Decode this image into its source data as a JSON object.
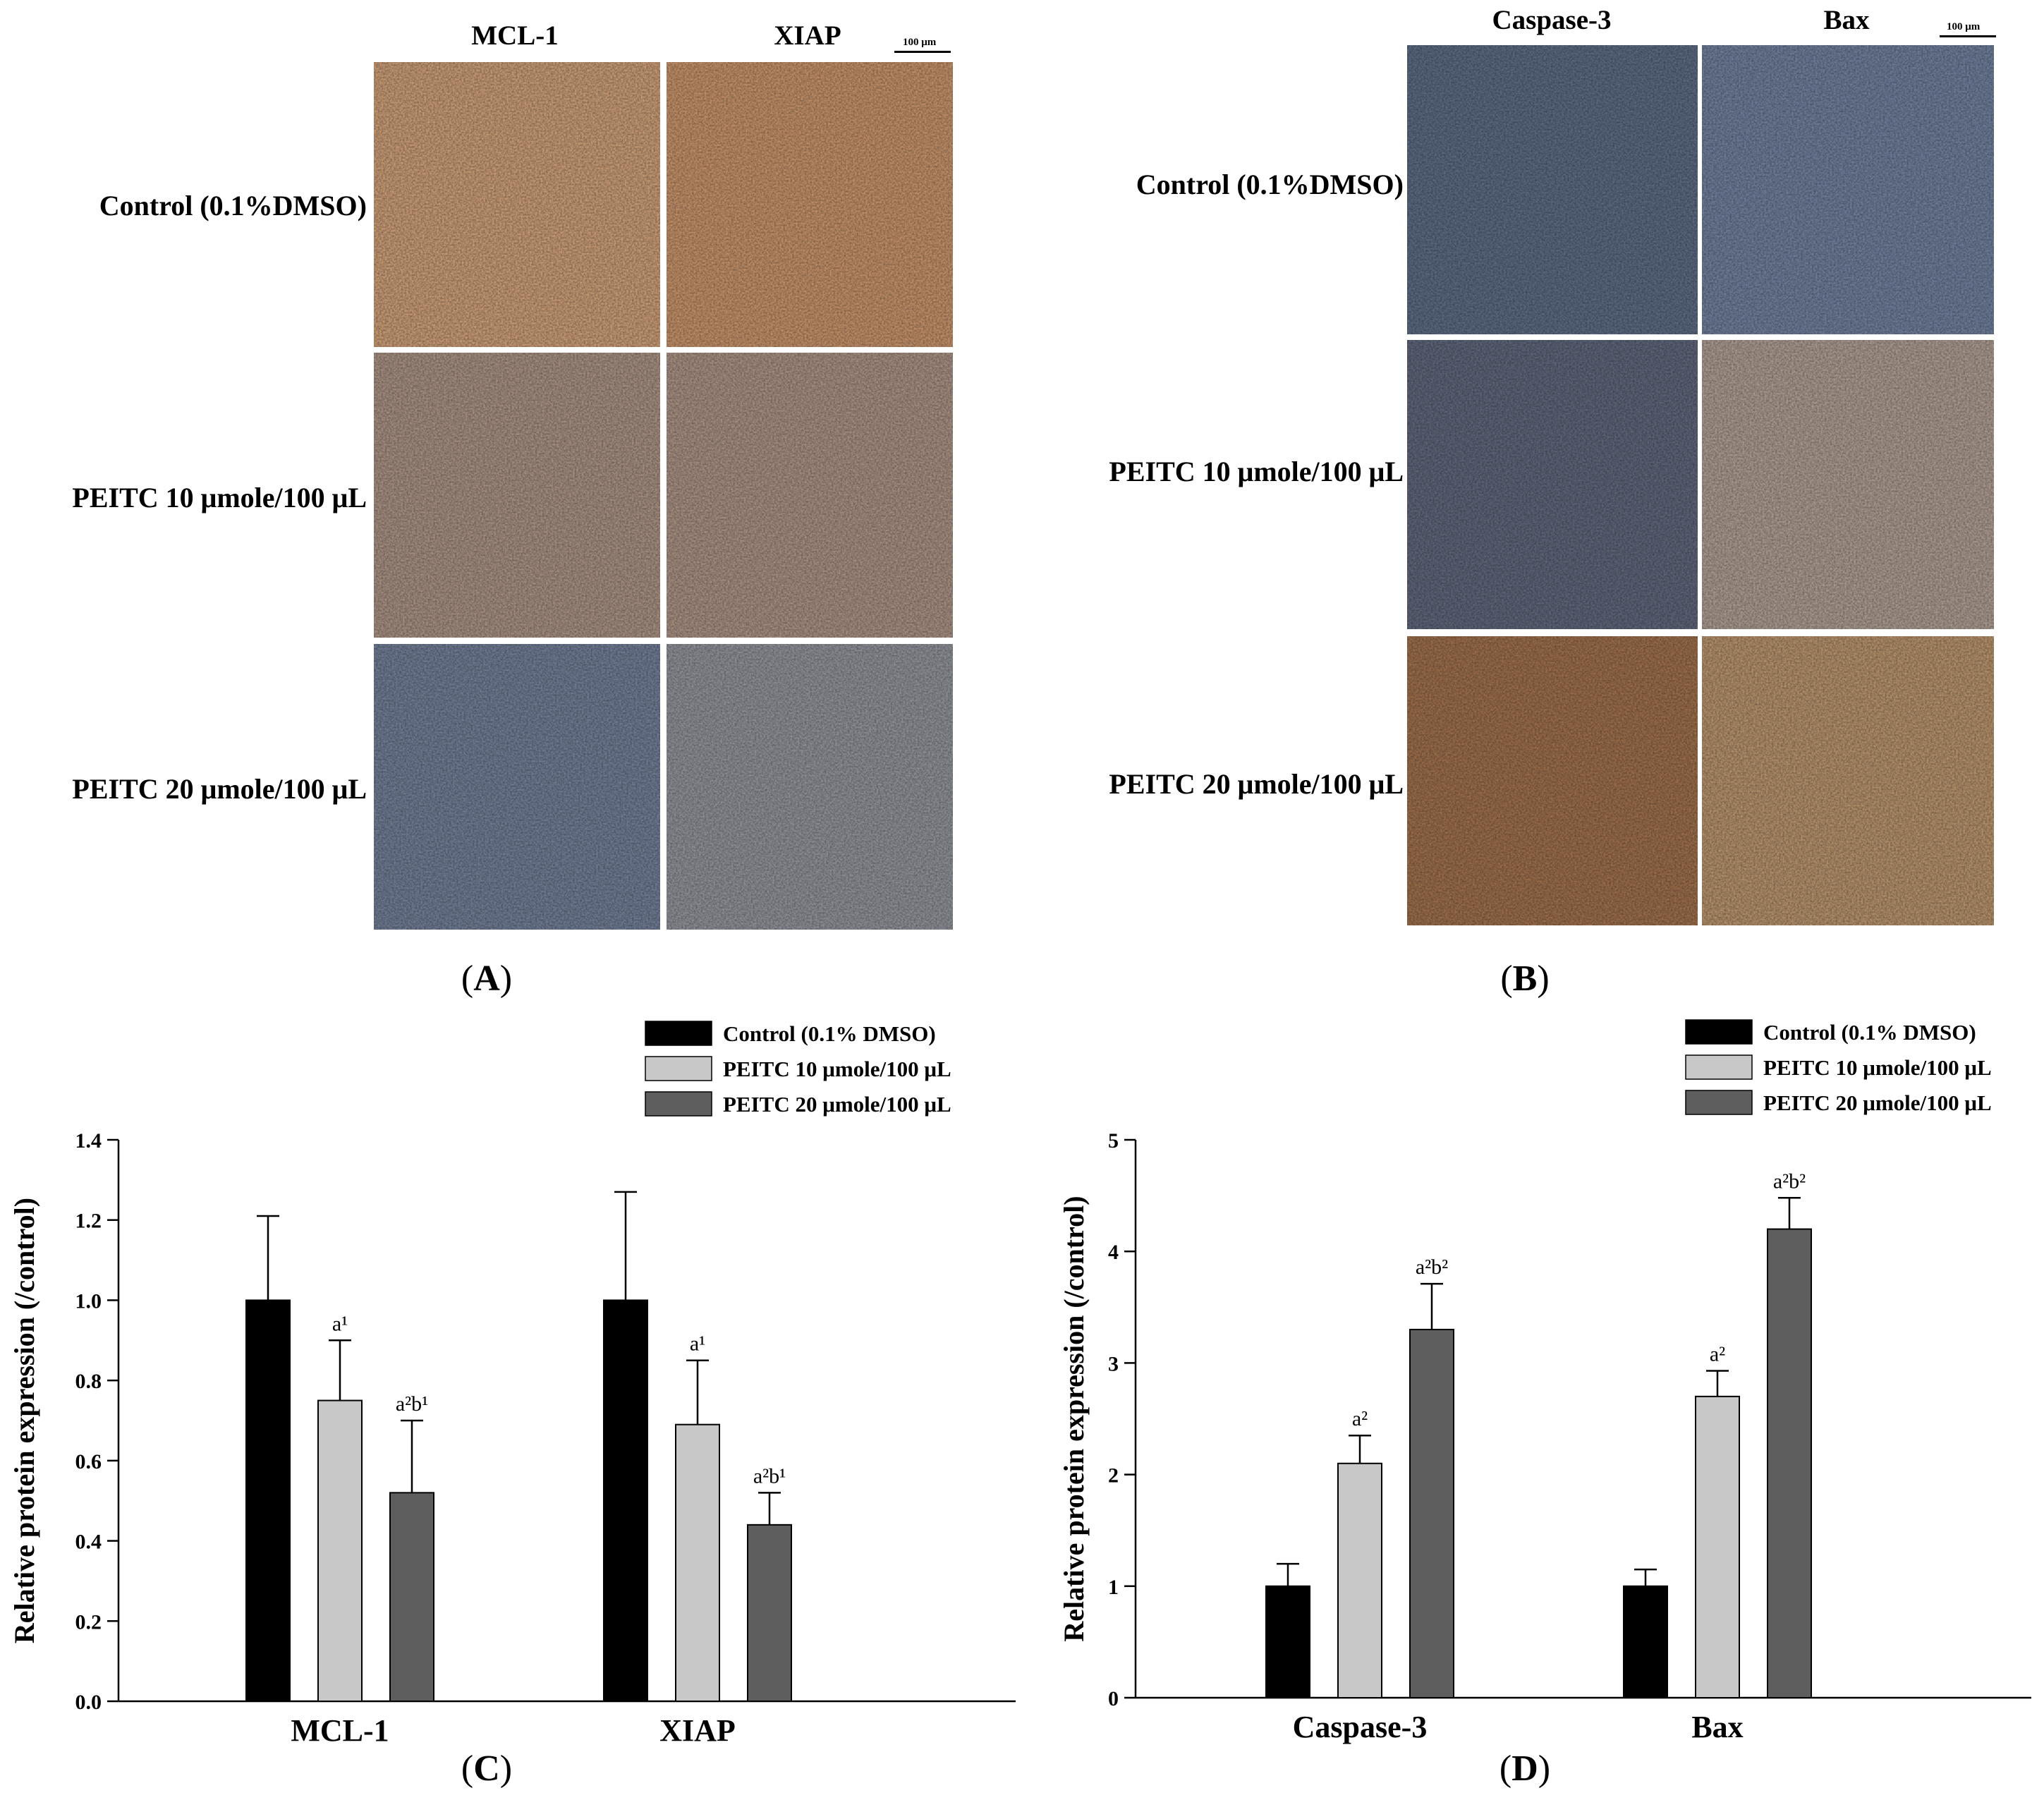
{
  "panel_a": {
    "columns": [
      "MCL-1",
      "XIAP"
    ],
    "rows": [
      "Control (0.1%DMSO)",
      "PEITC 10 μmole/100 μL",
      "PEITC 20 μmole/100 μL"
    ],
    "scale_bar": "100 μm",
    "label": "A",
    "tile_colors": [
      [
        "#c79a74",
        "#c18f68"
      ],
      [
        "#a58e80",
        "#a68e81"
      ],
      [
        "#6f7b93",
        "#8d8f97"
      ]
    ]
  },
  "panel_b": {
    "columns": [
      "Caspase-3",
      "Bax"
    ],
    "rows": [
      "Control (0.1%DMSO)",
      "PEITC 10 μmole/100 μL",
      "PEITC 20 μmole/100 μL"
    ],
    "scale_bar": "100 μm",
    "label": "B",
    "tile_colors": [
      [
        "#5a6880",
        "#6e7c98"
      ],
      [
        "#5d6478",
        "#a9998f"
      ],
      [
        "#9b6d4a",
        "#b3906a"
      ]
    ]
  },
  "panel_c": {
    "label": "C"
  },
  "panel_d": {
    "label": "D"
  },
  "chart_data": [
    {
      "type": "bar",
      "panel": "C",
      "categories": [
        "MCL-1",
        "XIAP"
      ],
      "series": [
        {
          "name": "Control (0.1% DMSO)",
          "color": "#000000",
          "values": [
            1.0,
            1.0
          ],
          "errors": [
            0.21,
            0.27
          ],
          "annotations": [
            "",
            ""
          ]
        },
        {
          "name": "PEITC 10 μmole/100 μL",
          "color": "#c8c8c8",
          "values": [
            0.75,
            0.69
          ],
          "errors": [
            0.15,
            0.16
          ],
          "annotations": [
            "a¹",
            "a¹"
          ]
        },
        {
          "name": "PEITC 20 μmole/100 μL",
          "color": "#5e5e5e",
          "values": [
            0.52,
            0.44
          ],
          "errors": [
            0.18,
            0.08
          ],
          "annotations": [
            "a²b¹",
            "a²b¹"
          ]
        }
      ],
      "ylabel": "Relative protein expression (/control)",
      "ylim": [
        0,
        1.4
      ],
      "yticks": [
        "0.0",
        "0.2",
        "0.4",
        "0.6",
        "0.8",
        "1.0",
        "1.2",
        "1.4"
      ],
      "ytick_values": [
        0,
        0.2,
        0.4,
        0.6,
        0.8,
        1.0,
        1.2,
        1.4
      ],
      "legend_position": "top-right"
    },
    {
      "type": "bar",
      "panel": "D",
      "categories": [
        "Caspase-3",
        "Bax"
      ],
      "series": [
        {
          "name": "Control (0.1% DMSO)",
          "color": "#000000",
          "values": [
            1.0,
            1.0
          ],
          "errors": [
            0.2,
            0.15
          ],
          "annotations": [
            "",
            ""
          ]
        },
        {
          "name": "PEITC 10 μmole/100 μL",
          "color": "#c8c8c8",
          "values": [
            2.1,
            2.7
          ],
          "errors": [
            0.25,
            0.23
          ],
          "annotations": [
            "a²",
            "a²"
          ]
        },
        {
          "name": "PEITC 20 μmole/100 μL",
          "color": "#5e5e5e",
          "values": [
            3.3,
            4.2
          ],
          "errors": [
            0.41,
            0.28
          ],
          "annotations": [
            "a²b²",
            "a²b²"
          ]
        }
      ],
      "ylabel": "Relative protein expression (/control)",
      "ylim": [
        0,
        5
      ],
      "yticks": [
        "0",
        "1",
        "2",
        "3",
        "4",
        "5"
      ],
      "ytick_values": [
        0,
        1,
        2,
        3,
        4,
        5
      ],
      "legend_position": "top-right"
    }
  ]
}
